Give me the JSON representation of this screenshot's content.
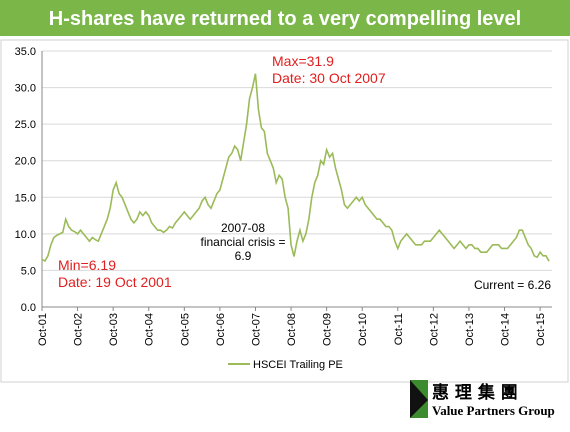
{
  "chart_data": {
    "type": "line",
    "title": "H-shares have returned to a very compelling level",
    "categories": [
      "Oct-01",
      null,
      null,
      null,
      null,
      null,
      null,
      null,
      null,
      null,
      null,
      null,
      "Oct-02",
      null,
      null,
      null,
      null,
      null,
      null,
      null,
      null,
      null,
      null,
      null,
      "Oct-03",
      null,
      null,
      null,
      null,
      null,
      null,
      null,
      null,
      null,
      null,
      null,
      "Oct-04",
      null,
      null,
      null,
      null,
      null,
      null,
      null,
      null,
      null,
      null,
      null,
      "Oct-05",
      null,
      null,
      null,
      null,
      null,
      null,
      null,
      null,
      null,
      null,
      null,
      "Oct-06",
      null,
      null,
      null,
      null,
      null,
      null,
      null,
      null,
      null,
      null,
      null,
      "Oct-07",
      null,
      null,
      null,
      null,
      null,
      null,
      null,
      null,
      null,
      null,
      null,
      "Oct-08",
      null,
      null,
      null,
      null,
      null,
      null,
      null,
      null,
      null,
      null,
      null,
      "Oct-09",
      null,
      null,
      null,
      null,
      null,
      null,
      null,
      null,
      null,
      null,
      null,
      "Oct-10",
      null,
      null,
      null,
      null,
      null,
      null,
      null,
      null,
      null,
      null,
      null,
      "Oct-11",
      null,
      null,
      null,
      null,
      null,
      null,
      null,
      null,
      null,
      null,
      null,
      "Oct-12",
      null,
      null,
      null,
      null,
      null,
      null,
      null,
      null,
      null,
      null,
      null,
      "Oct-13",
      null,
      null,
      null,
      null,
      null,
      null,
      null,
      null,
      null,
      null,
      null,
      "Oct-14",
      null,
      null,
      null,
      null,
      null,
      null,
      null,
      null,
      null,
      null,
      null,
      "Oct-15",
      null,
      null,
      null
    ],
    "series": [
      {
        "name": "HSCEI Trailing PE",
        "color": "#9bbb59",
        "values": [
          6.5,
          6.3,
          7.0,
          8.5,
          9.5,
          9.8,
          10.0,
          10.2,
          12.0,
          11.0,
          10.5,
          10.3,
          10.0,
          10.5,
          10.0,
          9.5,
          9.0,
          9.5,
          9.2,
          9.0,
          10.0,
          11.0,
          12.0,
          13.5,
          16.0,
          17.0,
          15.5,
          15.0,
          14.0,
          13.0,
          12.0,
          11.5,
          12.0,
          13.0,
          12.5,
          13.0,
          12.5,
          11.5,
          11.0,
          10.5,
          10.5,
          10.2,
          10.5,
          11.0,
          10.8,
          11.5,
          12.0,
          12.5,
          13.0,
          12.5,
          12.0,
          12.5,
          13.0,
          13.5,
          14.5,
          15.0,
          14.0,
          13.5,
          14.5,
          15.5,
          16.0,
          17.5,
          19.0,
          20.5,
          21.0,
          22.0,
          21.5,
          20.0,
          22.5,
          25.0,
          28.5,
          30.0,
          31.9,
          27.0,
          24.5,
          24.0,
          21.0,
          20.0,
          19.0,
          17.0,
          18.0,
          17.5,
          15.0,
          13.5,
          8.5,
          6.9,
          9.0,
          10.5,
          9.0,
          10.0,
          12.0,
          15.0,
          17.0,
          18.0,
          20.0,
          19.5,
          21.5,
          20.5,
          21.0,
          19.0,
          17.5,
          16.0,
          14.0,
          13.5,
          14.0,
          14.5,
          15.0,
          14.5,
          15.0,
          14.0,
          13.5,
          13.0,
          12.5,
          12.0,
          12.0,
          11.5,
          11.0,
          11.0,
          10.5,
          9.0,
          8.0,
          9.0,
          9.5,
          10.0,
          9.5,
          9.0,
          8.5,
          8.5,
          8.5,
          9.0,
          9.0,
          9.0,
          9.5,
          10.0,
          10.5,
          10.0,
          9.5,
          9.0,
          8.5,
          8.0,
          8.5,
          9.0,
          8.5,
          8.0,
          8.5,
          8.5,
          8.0,
          8.0,
          7.5,
          7.5,
          7.5,
          8.0,
          8.5,
          8.5,
          8.5,
          8.0,
          8.0,
          8.0,
          8.5,
          9.0,
          9.5,
          10.5,
          10.5,
          9.5,
          8.5,
          8.0,
          7.0,
          6.8,
          7.5,
          7.0,
          7.0,
          6.26
        ]
      }
    ],
    "ylim": [
      0,
      35
    ],
    "yticks": [
      {
        "value": 0,
        "label": "0.0"
      },
      {
        "value": 5,
        "label": "5.0"
      },
      {
        "value": 10,
        "label": "10.0"
      },
      {
        "value": 15,
        "label": "15.0"
      },
      {
        "value": 20,
        "label": "20.0"
      },
      {
        "value": 25,
        "label": "25.0"
      },
      {
        "value": 30,
        "label": "30.0"
      },
      {
        "value": 35,
        "label": "35.0"
      }
    ],
    "grid": true,
    "annotations": [
      {
        "lines": [
          "Max=31.9",
          "Date: 30 Oct 2007"
        ],
        "color": "#e02020"
      },
      {
        "lines": [
          "Min=6.19",
          "Date: 19 Oct 2001"
        ],
        "color": "#e02020"
      },
      {
        "lines": [
          "2007-08",
          "financial crisis =",
          "6.9"
        ],
        "color": "#000000"
      },
      {
        "lines": [
          "Current = 6.26"
        ],
        "color": "#000000"
      }
    ],
    "legend": "bottom"
  },
  "logo": {
    "chinese": "惠 理 集 團",
    "english": "Value Partners Group"
  }
}
